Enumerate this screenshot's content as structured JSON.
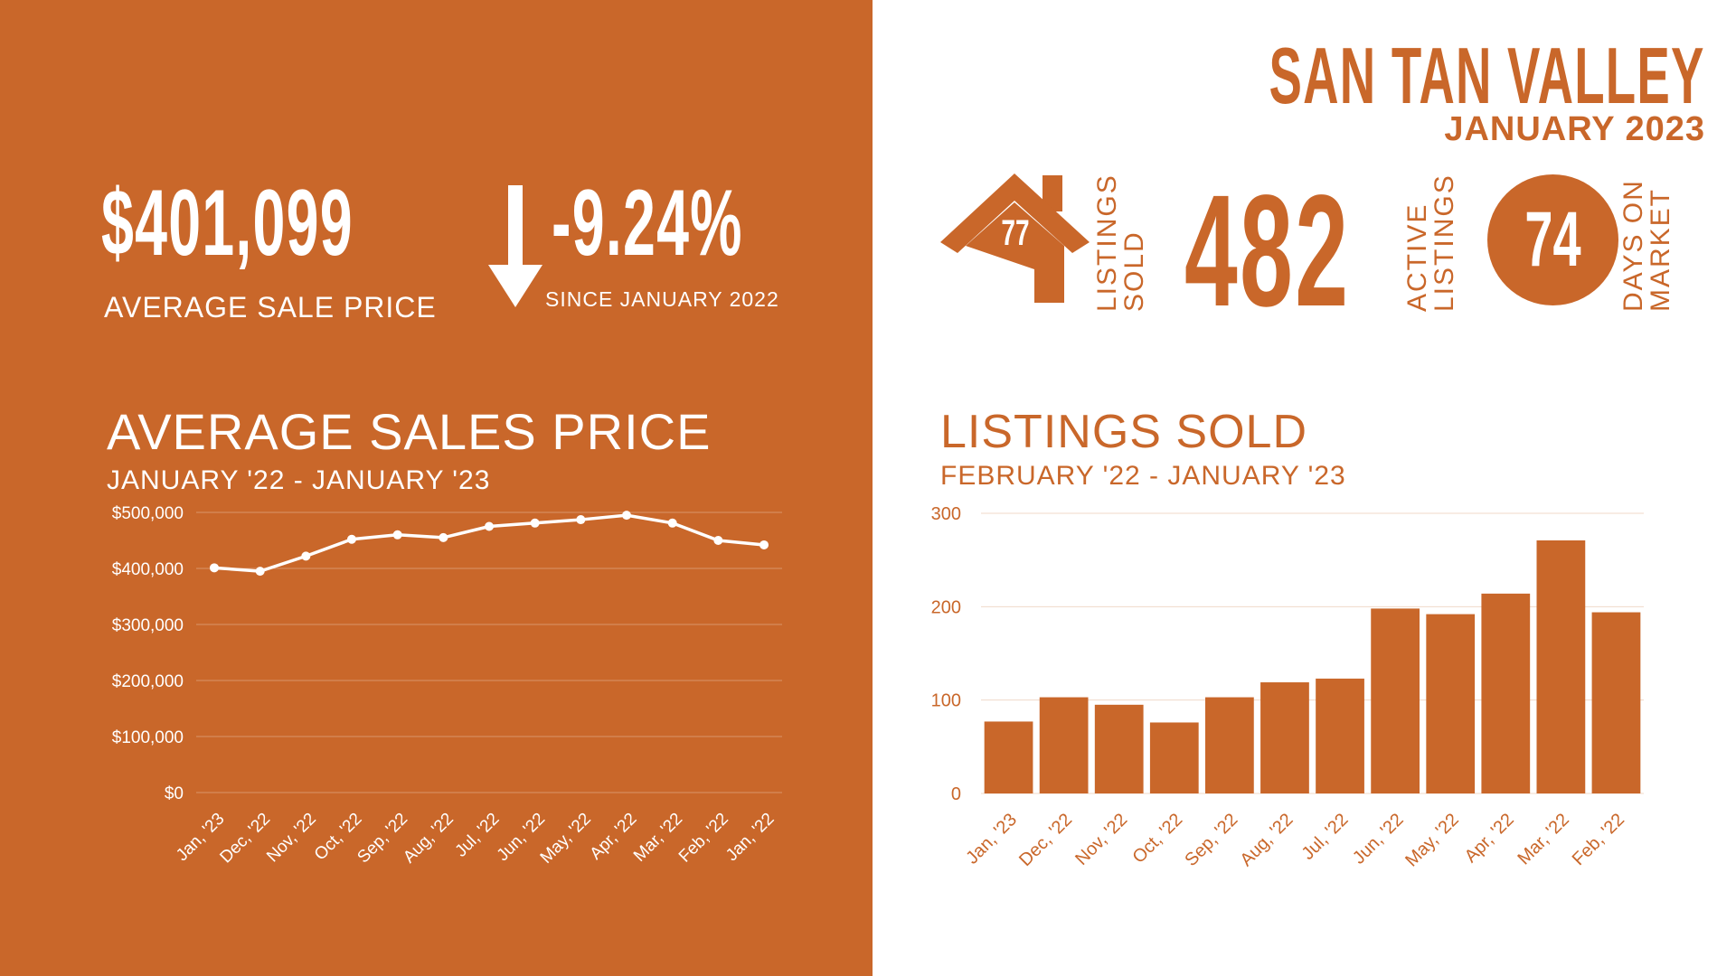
{
  "header": {
    "region": "SAN TAN VALLEY",
    "date": "JANUARY 2023"
  },
  "summary": {
    "avg_price_value": "$401,099",
    "avg_price_label": "AVERAGE  SALE PRICE",
    "change_value": "-9.24%",
    "change_label": "SINCE JANUARY 2022",
    "listings_sold_count": "77",
    "listings_sold_label_1": "LISTINGS",
    "listings_sold_label_2": "SOLD",
    "active_count": "482",
    "active_label_1": "ACTIVE",
    "active_label_2": "LISTINGS",
    "dom_count": "74",
    "dom_label_1": "DAYS ON",
    "dom_label_2": "MARKET"
  },
  "colors": {
    "brand": "#C9672A",
    "white": "#FFFFFF"
  },
  "icons": [
    "house-icon",
    "down-arrow-icon"
  ],
  "chart_data": [
    {
      "type": "line",
      "title": "AVERAGE SALES PRICE",
      "subtitle": "JANUARY '22 - JANUARY '23",
      "categories": [
        "Jan, '23",
        "Dec, '22",
        "Nov, '22",
        "Oct, '22",
        "Sep, '22",
        "Aug, '22",
        "Jul, '22",
        "Jun, '22",
        "May, '22",
        "Apr, '22",
        "Mar, '22",
        "Feb, '22",
        "Jan, '22"
      ],
      "values": [
        401099,
        395000,
        422000,
        452000,
        460000,
        455000,
        475000,
        481000,
        487000,
        495000,
        481000,
        450000,
        442000
      ],
      "ylim": [
        0,
        500000
      ],
      "yticks": [
        "$0",
        "$100,000",
        "$200,000",
        "$300,000",
        "$400,000",
        "$500,000"
      ],
      "grid": true
    },
    {
      "type": "bar",
      "title": "LISTINGS SOLD",
      "subtitle": "FEBRUARY '22 - JANUARY '23",
      "categories": [
        "Jan, '23",
        "Dec, '22",
        "Nov, '22",
        "Oct, '22",
        "Sep, '22",
        "Aug, '22",
        "Jul, '22",
        "Jun, '22",
        "May, '22",
        "Apr, '22",
        "Mar, '22",
        "Feb, '22"
      ],
      "values": [
        77,
        103,
        95,
        76,
        103,
        119,
        123,
        198,
        192,
        214,
        271,
        194
      ],
      "ylim": [
        0,
        300
      ],
      "yticks": [
        "0",
        "100",
        "200",
        "300"
      ],
      "grid": true
    }
  ]
}
